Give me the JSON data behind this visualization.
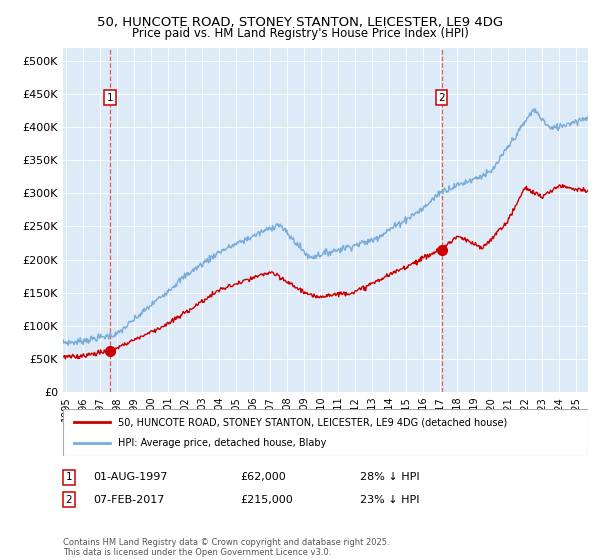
{
  "title1": "50, HUNCOTE ROAD, STONEY STANTON, LEICESTER, LE9 4DG",
  "title2": "Price paid vs. HM Land Registry's House Price Index (HPI)",
  "ylim": [
    0,
    520000
  ],
  "yticks": [
    0,
    50000,
    100000,
    150000,
    200000,
    250000,
    300000,
    350000,
    400000,
    450000,
    500000
  ],
  "ytick_labels": [
    "£0",
    "£50K",
    "£100K",
    "£150K",
    "£200K",
    "£250K",
    "£300K",
    "£350K",
    "£400K",
    "£450K",
    "£500K"
  ],
  "xlim_start": 1994.8,
  "xlim_end": 2025.7,
  "sale1_x": 1997.58,
  "sale1_y": 62000,
  "sale2_x": 2017.08,
  "sale2_y": 215000,
  "line_color_paid": "#cc0000",
  "line_color_hpi": "#7aacda",
  "bg_color": "#ddeaf7",
  "legend_label_paid": "50, HUNCOTE ROAD, STONEY STANTON, LEICESTER, LE9 4DG (detached house)",
  "legend_label_hpi": "HPI: Average price, detached house, Blaby",
  "footer": "Contains HM Land Registry data © Crown copyright and database right 2025.\nThis data is licensed under the Open Government Licence v3.0."
}
